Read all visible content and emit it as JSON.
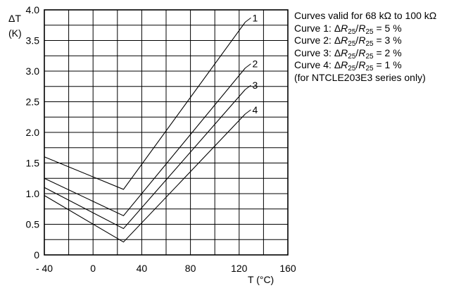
{
  "chart_data": {
    "type": "line",
    "title": "",
    "xlabel": "T (°C)",
    "ylabel_parts": [
      "ΔT",
      "(K)"
    ],
    "xlim": [
      -40,
      160
    ],
    "ylim": [
      0,
      4.0
    ],
    "x_ticks": [
      "- 40",
      "0",
      "40",
      "80",
      "120",
      "160"
    ],
    "y_ticks": [
      "0",
      "0.5",
      "1.0",
      "1.5",
      "2.0",
      "2.5",
      "3.0",
      "3.5",
      "4.0"
    ],
    "grid": true,
    "series": [
      {
        "name": "1",
        "x": [
          -40,
          25,
          125
        ],
        "y": [
          1.6,
          1.07,
          3.8
        ]
      },
      {
        "name": "2",
        "x": [
          -40,
          25,
          125
        ],
        "y": [
          1.25,
          0.64,
          3.05
        ]
      },
      {
        "name": "3",
        "x": [
          -40,
          25,
          125
        ],
        "y": [
          1.1,
          0.43,
          2.7
        ]
      },
      {
        "name": "4",
        "x": [
          -40,
          25,
          125
        ],
        "y": [
          0.97,
          0.21,
          2.3
        ]
      }
    ]
  },
  "notes": {
    "line1": "Curves valid for 68 kΩ to 100 kΩ",
    "curves": [
      {
        "prefix": "Curve 1: ",
        "delta": "Δ",
        "r": "R",
        "sub": "25",
        "slash": "/",
        "r2": "R",
        "sub2": "25",
        "value": " = 5 %"
      },
      {
        "prefix": "Curve 2: ",
        "delta": "Δ",
        "r": "R",
        "sub": "25",
        "slash": "/",
        "r2": "R",
        "sub2": "25",
        "value": " = 3 %"
      },
      {
        "prefix": "Curve 3: ",
        "delta": "Δ",
        "r": "R",
        "sub": "25",
        "slash": "/",
        "r2": "R",
        "sub2": "25",
        "value": " = 2 %"
      },
      {
        "prefix": "Curve 4: ",
        "delta": "Δ",
        "r": "R",
        "sub": "25",
        "slash": "/",
        "r2": "R",
        "sub2": "25",
        "value": " = 1 %"
      }
    ],
    "footer": "(for NTCLE203E3 series only)"
  }
}
